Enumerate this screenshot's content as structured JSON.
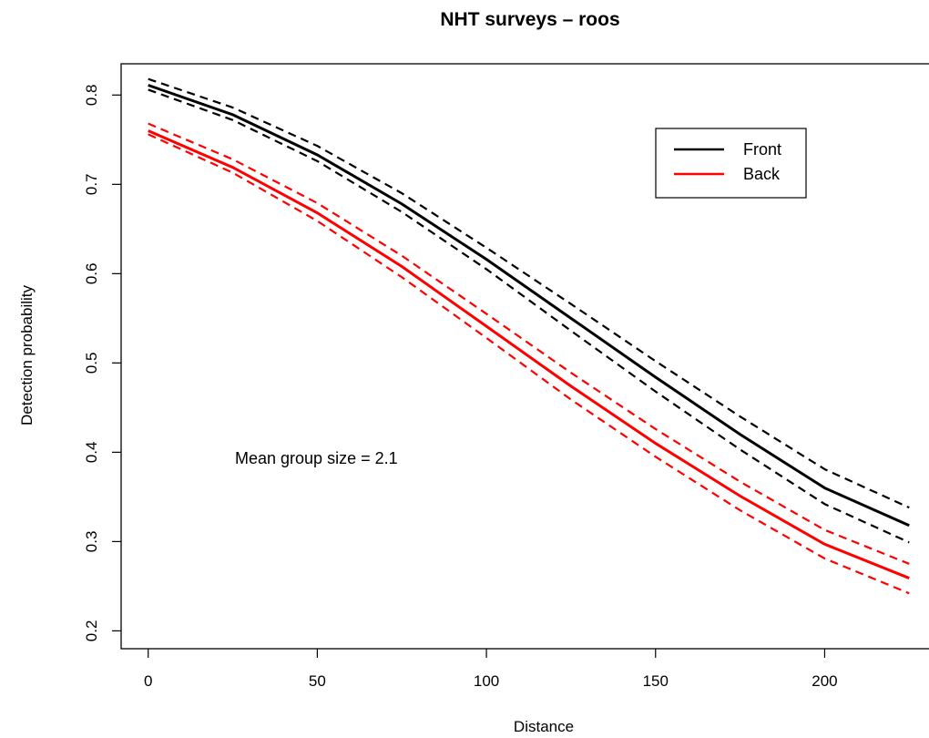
{
  "chart_data": {
    "type": "line",
    "title": "NHT surveys – roos",
    "xlabel": "Distance",
    "ylabel": "Detection probability",
    "xlim": [
      -8,
      233
    ],
    "ylim": [
      0.18,
      0.835
    ],
    "x_ticks": [
      0,
      50,
      100,
      150,
      200
    ],
    "y_ticks": [
      0.2,
      0.3,
      0.4,
      0.5,
      0.6,
      0.7,
      0.8
    ],
    "x_tick_labels": [
      "0",
      "50",
      "100",
      "150",
      "200"
    ],
    "y_tick_labels": [
      "0.2",
      "0.3",
      "0.4",
      "0.5",
      "0.6",
      "0.7",
      "0.8"
    ],
    "grid": false,
    "legend_position": "top-right",
    "annotation": "Mean group size = 2.1",
    "x": [
      0,
      25,
      50,
      75,
      100,
      125,
      150,
      175,
      200,
      225
    ],
    "series": [
      {
        "name": "Front",
        "color": "#000000",
        "style": "solid",
        "values": [
          0.811,
          0.778,
          0.733,
          0.678,
          0.616,
          0.55,
          0.484,
          0.42,
          0.36,
          0.318
        ]
      },
      {
        "name": "",
        "color": "#000000",
        "style": "dashed",
        "values": [
          0.818,
          0.786,
          0.743,
          0.69,
          0.629,
          0.566,
          0.502,
          0.44,
          0.381,
          0.338
        ]
      },
      {
        "name": "",
        "color": "#000000",
        "style": "dashed",
        "values": [
          0.806,
          0.772,
          0.726,
          0.669,
          0.605,
          0.536,
          0.468,
          0.403,
          0.342,
          0.299
        ]
      },
      {
        "name": "Back",
        "color": "#ff0000",
        "style": "solid",
        "values": [
          0.76,
          0.719,
          0.668,
          0.608,
          0.541,
          0.474,
          0.41,
          0.351,
          0.297,
          0.259
        ]
      },
      {
        "name": "",
        "color": "#ff0000",
        "style": "dashed",
        "values": [
          0.768,
          0.728,
          0.679,
          0.62,
          0.555,
          0.489,
          0.426,
          0.367,
          0.313,
          0.275
        ]
      },
      {
        "name": "",
        "color": "#ff0000",
        "style": "dashed",
        "values": [
          0.756,
          0.713,
          0.659,
          0.596,
          0.528,
          0.459,
          0.395,
          0.335,
          0.281,
          0.242
        ]
      }
    ]
  }
}
